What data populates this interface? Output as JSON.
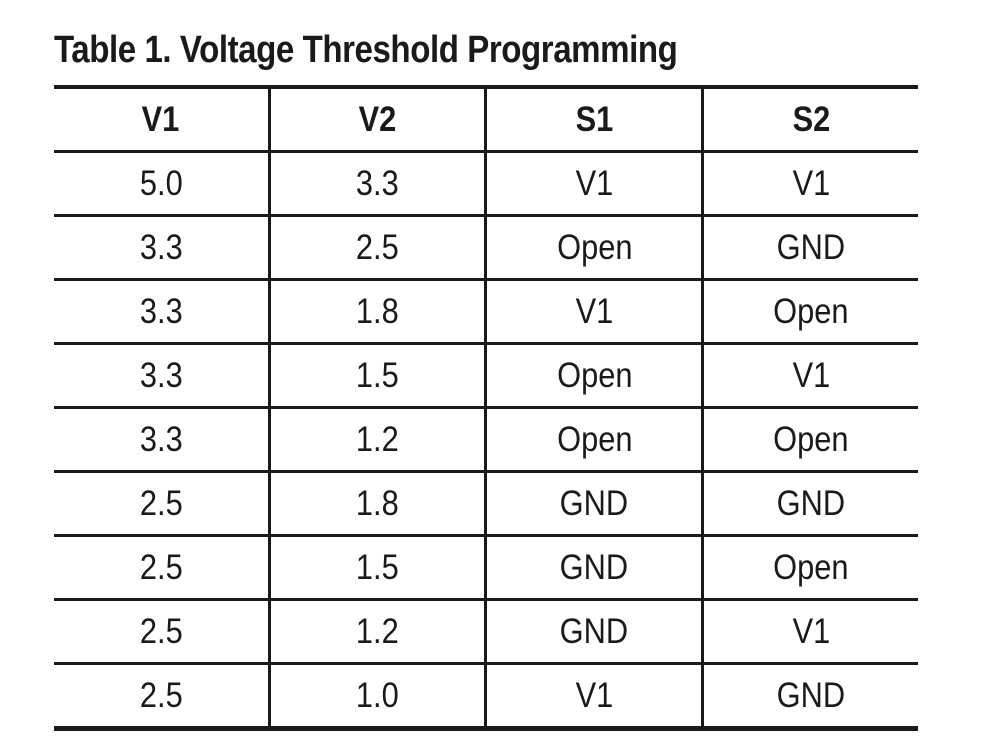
{
  "page": {
    "background": "#ffffff",
    "ink_color": "#1a1a1a"
  },
  "table": {
    "title": "Table 1. Voltage Threshold Programming",
    "columns": [
      "V1",
      "V2",
      "S1",
      "S2"
    ],
    "rows": [
      [
        "5.0",
        "3.3",
        "V1",
        "V1"
      ],
      [
        "3.3",
        "2.5",
        "Open",
        "GND"
      ],
      [
        "3.3",
        "1.8",
        "V1",
        "Open"
      ],
      [
        "3.3",
        "1.5",
        "Open",
        "V1"
      ],
      [
        "3.3",
        "1.2",
        "Open",
        "Open"
      ],
      [
        "2.5",
        "1.8",
        "GND",
        "GND"
      ],
      [
        "2.5",
        "1.5",
        "GND",
        "Open"
      ],
      [
        "2.5",
        "1.2",
        "GND",
        "V1"
      ],
      [
        "2.5",
        "1.0",
        "V1",
        "GND"
      ]
    ]
  }
}
